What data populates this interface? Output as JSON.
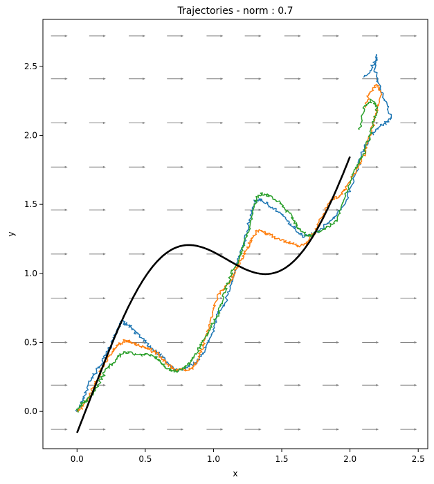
{
  "chart_data": {
    "type": "line",
    "title": "Trajectories - norm : 0.7",
    "xlabel": "x",
    "ylabel": "y",
    "xlim": [
      -0.25,
      2.57
    ],
    "ylim": [
      -0.27,
      2.84
    ],
    "xticks": [
      0.0,
      0.5,
      1.0,
      1.5,
      2.0,
      2.5
    ],
    "xtick_labels": [
      "0.0",
      "0.5",
      "1.0",
      "1.5",
      "2.0",
      "2.5"
    ],
    "yticks": [
      0.0,
      0.5,
      1.0,
      1.5,
      2.0,
      2.5
    ],
    "ytick_labels": [
      "0.0",
      "0.5",
      "1.0",
      "1.5",
      "2.0",
      "2.5"
    ],
    "grid": false,
    "reference_curve": {
      "color": "#000000",
      "formula": "y = x + 0.5*sin(pi*(x - 0.1))",
      "x_range": [
        0.0,
        2.0
      ]
    },
    "vector_field": {
      "color": "#808080",
      "direction": [
        1,
        0
      ],
      "x": [
        -0.13,
        0.15,
        0.44,
        0.72,
        1.01,
        1.29,
        1.58,
        1.86,
        2.15,
        2.43
      ],
      "y": [
        -0.13,
        0.19,
        0.5,
        0.82,
        1.14,
        1.46,
        1.77,
        2.09,
        2.41,
        2.72
      ]
    },
    "series": [
      {
        "color": "#1f77b4",
        "points": [
          [
            0.0,
            0.0
          ],
          [
            0.03,
            0.06
          ],
          [
            0.06,
            0.13
          ],
          [
            0.09,
            0.22
          ],
          [
            0.12,
            0.26
          ],
          [
            0.16,
            0.32
          ],
          [
            0.2,
            0.38
          ],
          [
            0.24,
            0.46
          ],
          [
            0.27,
            0.54
          ],
          [
            0.3,
            0.61
          ],
          [
            0.33,
            0.65
          ],
          [
            0.37,
            0.63
          ],
          [
            0.41,
            0.6
          ],
          [
            0.45,
            0.55
          ],
          [
            0.5,
            0.5
          ],
          [
            0.55,
            0.45
          ],
          [
            0.6,
            0.42
          ],
          [
            0.64,
            0.38
          ],
          [
            0.68,
            0.33
          ],
          [
            0.72,
            0.3
          ],
          [
            0.77,
            0.3
          ],
          [
            0.82,
            0.33
          ],
          [
            0.88,
            0.36
          ],
          [
            0.92,
            0.42
          ],
          [
            0.96,
            0.5
          ],
          [
            1.0,
            0.59
          ],
          [
            1.03,
            0.7
          ],
          [
            1.08,
            0.78
          ],
          [
            1.12,
            0.9
          ],
          [
            1.16,
            1.03
          ],
          [
            1.2,
            1.15
          ],
          [
            1.24,
            1.27
          ],
          [
            1.27,
            1.41
          ],
          [
            1.3,
            1.52
          ],
          [
            1.34,
            1.54
          ],
          [
            1.4,
            1.5
          ],
          [
            1.47,
            1.45
          ],
          [
            1.54,
            1.38
          ],
          [
            1.6,
            1.32
          ],
          [
            1.66,
            1.27
          ],
          [
            1.72,
            1.28
          ],
          [
            1.8,
            1.33
          ],
          [
            1.88,
            1.4
          ],
          [
            1.95,
            1.48
          ],
          [
            2.0,
            1.6
          ],
          [
            2.05,
            1.75
          ],
          [
            2.1,
            1.9
          ],
          [
            2.15,
            2.0
          ],
          [
            2.22,
            2.07
          ],
          [
            2.28,
            2.1
          ],
          [
            2.3,
            2.13
          ],
          [
            2.25,
            2.28
          ],
          [
            2.2,
            2.4
          ],
          [
            2.18,
            2.5
          ],
          [
            2.2,
            2.58
          ],
          [
            2.16,
            2.49
          ],
          [
            2.1,
            2.42
          ]
        ]
      },
      {
        "color": "#ff7f0e",
        "points": [
          [
            0.0,
            0.0
          ],
          [
            0.04,
            0.03
          ],
          [
            0.08,
            0.09
          ],
          [
            0.11,
            0.16
          ],
          [
            0.15,
            0.23
          ],
          [
            0.18,
            0.31
          ],
          [
            0.22,
            0.38
          ],
          [
            0.26,
            0.44
          ],
          [
            0.3,
            0.48
          ],
          [
            0.35,
            0.51
          ],
          [
            0.4,
            0.5
          ],
          [
            0.45,
            0.48
          ],
          [
            0.5,
            0.46
          ],
          [
            0.55,
            0.44
          ],
          [
            0.6,
            0.41
          ],
          [
            0.64,
            0.37
          ],
          [
            0.68,
            0.33
          ],
          [
            0.72,
            0.3
          ],
          [
            0.78,
            0.3
          ],
          [
            0.84,
            0.31
          ],
          [
            0.88,
            0.36
          ],
          [
            0.91,
            0.44
          ],
          [
            0.94,
            0.53
          ],
          [
            0.97,
            0.62
          ],
          [
            1.0,
            0.75
          ],
          [
            1.04,
            0.85
          ],
          [
            1.09,
            0.9
          ],
          [
            1.13,
            0.95
          ],
          [
            1.16,
            1.03
          ],
          [
            1.2,
            1.1
          ],
          [
            1.24,
            1.16
          ],
          [
            1.28,
            1.25
          ],
          [
            1.32,
            1.31
          ],
          [
            1.37,
            1.3
          ],
          [
            1.43,
            1.27
          ],
          [
            1.5,
            1.24
          ],
          [
            1.56,
            1.22
          ],
          [
            1.62,
            1.2
          ],
          [
            1.68,
            1.21
          ],
          [
            1.74,
            1.3
          ],
          [
            1.8,
            1.42
          ],
          [
            1.86,
            1.53
          ],
          [
            1.92,
            1.56
          ],
          [
            1.97,
            1.62
          ],
          [
            2.03,
            1.72
          ],
          [
            2.09,
            1.82
          ],
          [
            2.13,
            1.96
          ],
          [
            2.17,
            2.08
          ],
          [
            2.2,
            2.2
          ],
          [
            2.23,
            2.32
          ],
          [
            2.19,
            2.36
          ],
          [
            2.14,
            2.3
          ],
          [
            2.11,
            2.2
          ]
        ]
      },
      {
        "color": "#2ca02c",
        "points": [
          [
            0.0,
            0.0
          ],
          [
            0.03,
            0.05
          ],
          [
            0.07,
            0.08
          ],
          [
            0.11,
            0.12
          ],
          [
            0.15,
            0.18
          ],
          [
            0.19,
            0.26
          ],
          [
            0.23,
            0.32
          ],
          [
            0.27,
            0.36
          ],
          [
            0.31,
            0.4
          ],
          [
            0.35,
            0.43
          ],
          [
            0.4,
            0.42
          ],
          [
            0.46,
            0.41
          ],
          [
            0.52,
            0.41
          ],
          [
            0.58,
            0.39
          ],
          [
            0.63,
            0.34
          ],
          [
            0.68,
            0.3
          ],
          [
            0.73,
            0.29
          ],
          [
            0.78,
            0.31
          ],
          [
            0.83,
            0.35
          ],
          [
            0.87,
            0.41
          ],
          [
            0.91,
            0.48
          ],
          [
            0.95,
            0.56
          ],
          [
            0.99,
            0.63
          ],
          [
            1.03,
            0.7
          ],
          [
            1.06,
            0.8
          ],
          [
            1.1,
            0.92
          ],
          [
            1.14,
            1.02
          ],
          [
            1.18,
            1.1
          ],
          [
            1.22,
            1.2
          ],
          [
            1.26,
            1.33
          ],
          [
            1.29,
            1.45
          ],
          [
            1.32,
            1.56
          ],
          [
            1.37,
            1.58
          ],
          [
            1.43,
            1.55
          ],
          [
            1.49,
            1.51
          ],
          [
            1.55,
            1.44
          ],
          [
            1.6,
            1.37
          ],
          [
            1.64,
            1.3
          ],
          [
            1.7,
            1.27
          ],
          [
            1.77,
            1.3
          ],
          [
            1.84,
            1.34
          ],
          [
            1.9,
            1.38
          ],
          [
            1.95,
            1.52
          ],
          [
            2.0,
            1.66
          ],
          [
            2.05,
            1.78
          ],
          [
            2.1,
            1.87
          ],
          [
            2.14,
            1.98
          ],
          [
            2.17,
            2.09
          ],
          [
            2.2,
            2.2
          ],
          [
            2.16,
            2.26
          ],
          [
            2.1,
            2.19
          ],
          [
            2.07,
            2.04
          ]
        ]
      }
    ]
  }
}
